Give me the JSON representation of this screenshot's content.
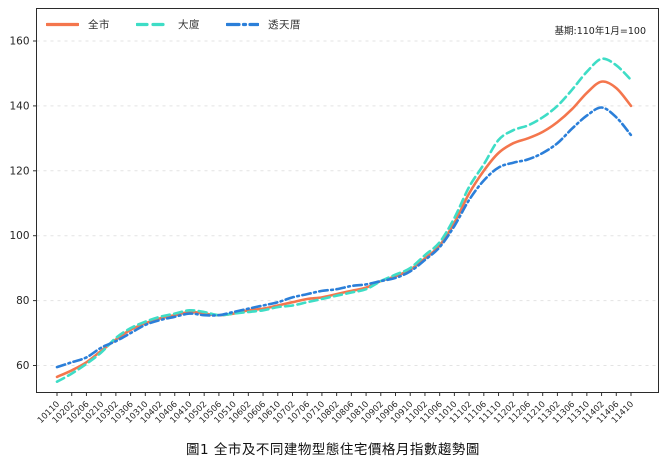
{
  "chart_data": {
    "type": "line",
    "title": "圖1 全市及不同建物型態住宅價格月指數趨勢圖",
    "annotation": "基期:110年1月=100",
    "xlabel": "",
    "ylabel": "",
    "y_ticks": [
      60,
      80,
      100,
      120,
      140,
      160
    ],
    "ylim": [
      51.5,
      170
    ],
    "grid": "horizontal-dashed",
    "legend_position": "top-left-horizontal",
    "x_tick_labels": [
      "10110",
      "10202",
      "10206",
      "10210",
      "10302",
      "10306",
      "10310",
      "10402",
      "10406",
      "10410",
      "10502",
      "10506",
      "10510",
      "10602",
      "10606",
      "10610",
      "10702",
      "10706",
      "10710",
      "10802",
      "10806",
      "10810",
      "10902",
      "10906",
      "10910",
      "11002",
      "11006",
      "11010",
      "11102",
      "11106",
      "11110",
      "11202",
      "11206",
      "11210",
      "11302",
      "11306",
      "11310",
      "11402",
      "11406",
      "11410"
    ],
    "series": [
      {
        "name": "全市",
        "color": "#f4764d",
        "style": "solid",
        "values": [
          56.5,
          58.5,
          61,
          64.5,
          68,
          71,
          73,
          74.5,
          75.5,
          76.5,
          76,
          75.5,
          76,
          77,
          77.5,
          78.5,
          79.5,
          80.5,
          81,
          82,
          83,
          84,
          86,
          87.5,
          89.5,
          93,
          97,
          104,
          113,
          120,
          125.5,
          128.5,
          130,
          132,
          135,
          139,
          144,
          147.5,
          145.5,
          140
        ]
      },
      {
        "name": "大廈",
        "color": "#3eddc6",
        "style": "dashed",
        "values": [
          55,
          57.5,
          60.5,
          64,
          68.5,
          71.5,
          73.5,
          75,
          76,
          77,
          76.5,
          75.5,
          76,
          76.5,
          77,
          78,
          78.5,
          79.5,
          80.5,
          81.5,
          82.5,
          83.5,
          86,
          88,
          90,
          94,
          98,
          105.5,
          115,
          122,
          129.5,
          132.5,
          134,
          136.5,
          140,
          145,
          150.5,
          154.5,
          152.5,
          148
        ]
      },
      {
        "name": "透天厝",
        "color": "#2b7fd9",
        "style": "dashdot",
        "values": [
          59.5,
          61,
          62.5,
          65.5,
          67.5,
          70,
          72.5,
          74,
          75,
          76,
          75.5,
          75.5,
          76.5,
          77.5,
          78.5,
          79.5,
          81,
          82,
          83,
          83.5,
          84.5,
          85,
          86,
          87,
          89,
          92.5,
          96.5,
          103,
          111,
          117,
          121,
          122.5,
          123.5,
          125.5,
          128.5,
          133,
          137,
          139.5,
          136.5,
          131
        ]
      }
    ]
  }
}
